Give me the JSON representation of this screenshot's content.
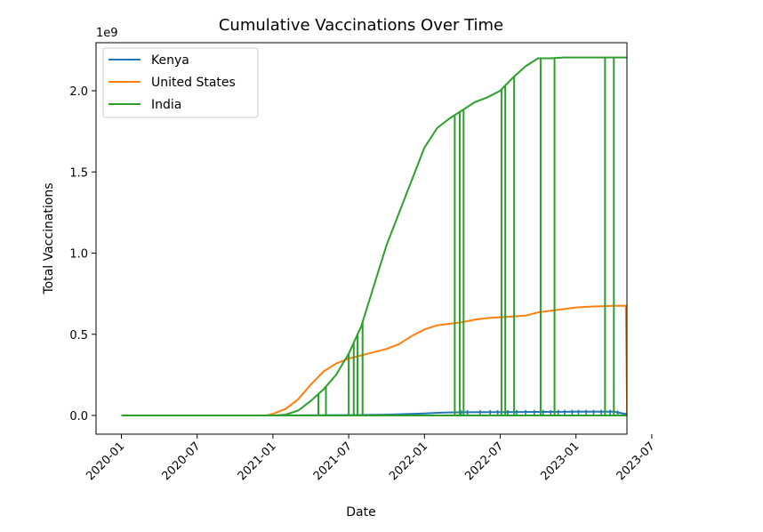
{
  "chart_data": {
    "type": "line",
    "title": "Cumulative Vaccinations Over Time",
    "xlabel": "Date",
    "ylabel": "Total Vaccinations",
    "y_offset_label": "1e9",
    "xlim": [
      0,
      46
    ],
    "ylim": [
      -0.1,
      2.3
    ],
    "x_ticks": [
      {
        "pos": 0,
        "label": "2020-01"
      },
      {
        "pos": 6,
        "label": "2020-07"
      },
      {
        "pos": 12,
        "label": "2021-01"
      },
      {
        "pos": 18,
        "label": "2021-07"
      },
      {
        "pos": 24,
        "label": "2022-01"
      },
      {
        "pos": 30,
        "label": "2022-07"
      },
      {
        "pos": 36,
        "label": "2023-01"
      },
      {
        "pos": 42,
        "label": "2023-07"
      }
    ],
    "y_ticks": [
      {
        "value": 0.0,
        "label": "0.0"
      },
      {
        "value": 0.5,
        "label": "0.5"
      },
      {
        "value": 1.0,
        "label": "1.0"
      },
      {
        "value": 1.5,
        "label": "1.5"
      },
      {
        "value": 2.0,
        "label": "2.0"
      }
    ],
    "legend_position": "top-left",
    "series": [
      {
        "name": "Kenya",
        "color": "#1f77b4",
        "x": [
          0,
          12,
          15,
          18,
          21,
          24,
          25.5,
          27,
          30,
          33,
          36,
          39,
          40.5,
          42,
          45.5
        ],
        "y": [
          0,
          0,
          0.001,
          0.002,
          0.005,
          0.012,
          0.018,
          0.02,
          0.021,
          0.022,
          0.023,
          0.023,
          0,
          0,
          0
        ]
      },
      {
        "name": "United States",
        "color": "#ff7f0e",
        "x": [
          0,
          11.5,
          12,
          13,
          14,
          15,
          16,
          17,
          18,
          19,
          20,
          21,
          22,
          23,
          24,
          25,
          26,
          27,
          28,
          29,
          30,
          31,
          32,
          33,
          34,
          35,
          36,
          37,
          38,
          39,
          39.95,
          40.05,
          42,
          45.5
        ],
        "y": [
          0,
          0,
          0.01,
          0.04,
          0.1,
          0.19,
          0.27,
          0.32,
          0.35,
          0.37,
          0.39,
          0.41,
          0.44,
          0.49,
          0.53,
          0.555,
          0.565,
          0.575,
          0.59,
          0.6,
          0.605,
          0.61,
          0.615,
          0.635,
          0.645,
          0.655,
          0.665,
          0.67,
          0.673,
          0.675,
          0.675,
          0,
          0,
          0
        ]
      },
      {
        "name": "India",
        "color": "#2ca02c",
        "x": [
          0,
          12,
          13,
          14,
          15,
          16,
          17,
          18,
          19,
          20,
          21,
          22,
          23,
          24,
          25,
          26,
          27,
          28,
          29,
          30,
          31,
          32,
          33,
          34,
          35,
          36,
          38,
          40,
          42,
          45.5
        ],
        "y": [
          0,
          0,
          0.005,
          0.03,
          0.09,
          0.16,
          0.25,
          0.38,
          0.55,
          0.8,
          1.05,
          1.25,
          1.45,
          1.65,
          1.77,
          1.83,
          1.88,
          1.93,
          1.96,
          2.0,
          2.08,
          2.15,
          2.2,
          2.2,
          2.205,
          2.205,
          2.205,
          2.205,
          2.205,
          2.205
        ]
      }
    ],
    "india_dropouts": [
      15.6,
      16.2,
      18.0,
      18.4,
      18.7,
      19.1,
      26.4,
      26.8,
      27.1,
      30.1,
      30.4,
      31.1,
      33.2,
      34.3,
      38.3,
      39.0,
      41.1,
      43.2,
      45.0
    ],
    "kenya_spikes": [
      26.9,
      27.4,
      28.4,
      29.2,
      29.8,
      30.6,
      31.3,
      32.0,
      32.7,
      33.4,
      34.0,
      34.6,
      35.1,
      35.7,
      36.2,
      36.8,
      37.4,
      38.0,
      38.7,
      39.3,
      40.0
    ]
  }
}
